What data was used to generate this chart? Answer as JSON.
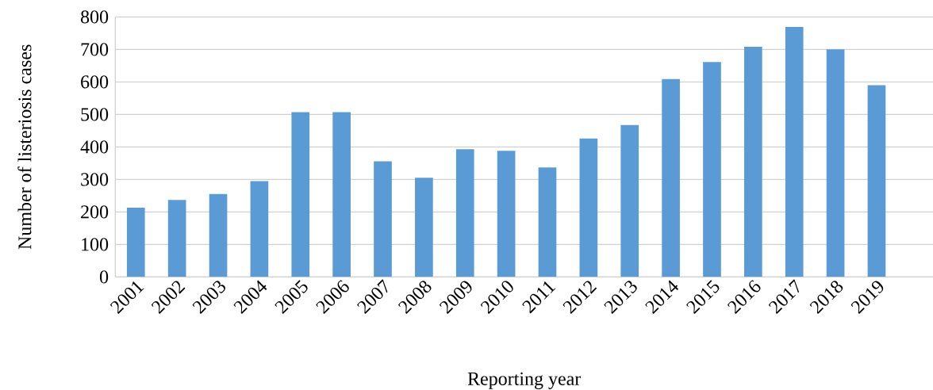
{
  "chart_data": {
    "type": "bar",
    "xlabel": "Reporting year",
    "ylabel": "Number of listeriosis cases",
    "categories": [
      "2001",
      "2002",
      "2003",
      "2004",
      "2005",
      "2006",
      "2007",
      "2008",
      "2009",
      "2010",
      "2011",
      "2012",
      "2013",
      "2014",
      "2015",
      "2016",
      "2017",
      "2018",
      "2019"
    ],
    "values": [
      213,
      237,
      255,
      295,
      507,
      507,
      356,
      305,
      393,
      388,
      337,
      426,
      467,
      609,
      661,
      708,
      769,
      700,
      590
    ],
    "color": "#5b9bd5",
    "ylim": [
      0,
      800
    ],
    "yticks": [
      0,
      100,
      200,
      300,
      400,
      500,
      600,
      700,
      800
    ],
    "grid": "y"
  }
}
